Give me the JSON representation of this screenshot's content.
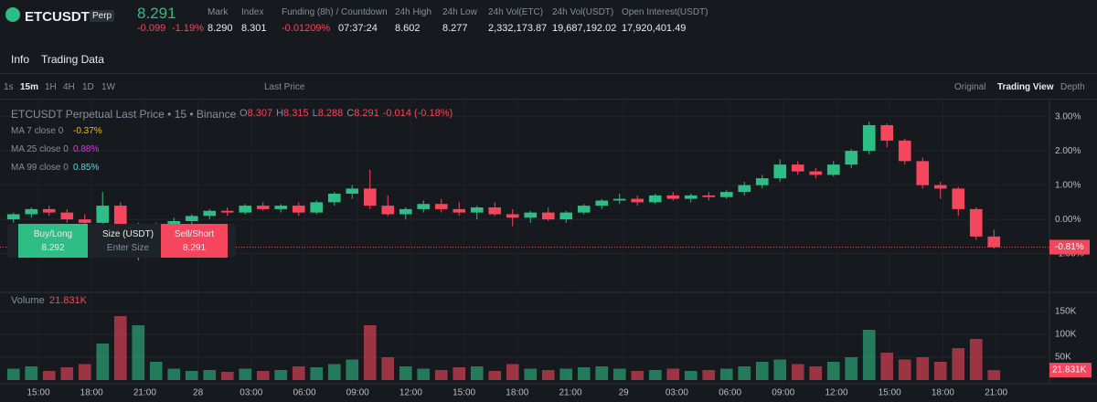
{
  "header": {
    "symbol": "ETCUSDT",
    "badge": "Perp",
    "price": "8.291",
    "change": "-0.099",
    "change_pct": "-1.19%",
    "stats": [
      {
        "label": "Mark",
        "value": "8.290"
      },
      {
        "label": "Index",
        "value": "8.301"
      },
      {
        "label": "Funding (8h) / Countdown",
        "value": "-0.01209%",
        "value2": "07:37:24"
      },
      {
        "label": "24h High",
        "value": "8.602"
      },
      {
        "label": "24h Low",
        "value": "8.277"
      },
      {
        "label": "24h Vol(ETC)",
        "value": "2,332,173.87"
      },
      {
        "label": "24h Vol(USDT)",
        "value": "19,687,192.02"
      },
      {
        "label": "Open Interest(USDT)",
        "value": "17,920,401.49"
      }
    ]
  },
  "tabs": [
    "Info",
    "Trading Data"
  ],
  "toolbar": {
    "intervals": [
      "1s",
      "15m",
      "1H",
      "4H",
      "1D",
      "1W"
    ],
    "price_type": "Last Price",
    "views": [
      "Original",
      "Trading View",
      "Depth"
    ]
  },
  "legend": {
    "title": "ETCUSDT Perpetual Last Price • 15 • Binance",
    "ohlc": [
      {
        "k": "O",
        "v": "8.307"
      },
      {
        "k": "H",
        "v": "8.315"
      },
      {
        "k": "L",
        "v": "8.288"
      },
      {
        "k": "C",
        "v": "8.291"
      }
    ],
    "change": "-0.014 (-0.18%)",
    "ma": [
      {
        "name": "MA 7 close 0",
        "value": "-0.37%",
        "color": "#f0b90b"
      },
      {
        "name": "MA 25 close 0",
        "value": "0.88%",
        "color": "#d63cd9"
      },
      {
        "name": "MA 99 close 0",
        "value": "0.85%",
        "color": "#5ad7e0"
      }
    ]
  },
  "order_panel": {
    "buy": "Buy/Long",
    "buy_price": "8.292",
    "size": "Size (USDT)",
    "size_hint": "Enter Size",
    "sell": "Sell/Short",
    "sell_price": "8.291"
  },
  "chart_data": {
    "type": "candlestick",
    "up_color": "#2ebd85",
    "down_color": "#f6465d",
    "ylim": [
      -2.13,
      3.47
    ],
    "yticks": [
      {
        "value": -1,
        "label": "-1.00%"
      },
      {
        "value": 0,
        "label": "0.00%"
      },
      {
        "value": 1,
        "label": "1.00%"
      },
      {
        "value": 2,
        "label": "2.00%"
      },
      {
        "value": 3,
        "label": "3.00%"
      }
    ],
    "last": {
      "value": -0.81,
      "label": "-0.81%"
    },
    "x_labels": [
      "15:00",
      "18:00",
      "21:00",
      "28",
      "03:00",
      "06:00",
      "09:00",
      "12:00",
      "15:00",
      "18:00",
      "21:00",
      "29",
      "03:00",
      "06:00",
      "09:00",
      "12:00",
      "15:00",
      "18:00",
      "21:00"
    ],
    "candles": [
      [
        0.0,
        0.2,
        -0.1,
        0.15
      ],
      [
        0.15,
        0.35,
        0.05,
        0.3
      ],
      [
        0.3,
        0.4,
        0.1,
        0.2
      ],
      [
        0.2,
        0.3,
        -0.1,
        0.0
      ],
      [
        0.0,
        0.15,
        -0.2,
        -0.1
      ],
      [
        -0.1,
        0.8,
        -0.15,
        0.4
      ],
      [
        0.4,
        0.5,
        -0.7,
        -0.5
      ],
      [
        -0.5,
        -0.1,
        -1.2,
        -0.4
      ],
      [
        -0.4,
        -0.1,
        -0.6,
        -0.2
      ],
      [
        -0.2,
        0.05,
        -0.3,
        -0.05
      ],
      [
        -0.05,
        0.15,
        -0.15,
        0.1
      ],
      [
        0.1,
        0.3,
        0.0,
        0.25
      ],
      [
        0.25,
        0.35,
        0.1,
        0.2
      ],
      [
        0.2,
        0.45,
        0.15,
        0.4
      ],
      [
        0.4,
        0.5,
        0.25,
        0.3
      ],
      [
        0.3,
        0.45,
        0.2,
        0.4
      ],
      [
        0.4,
        0.5,
        0.1,
        0.2
      ],
      [
        0.2,
        0.55,
        0.15,
        0.5
      ],
      [
        0.5,
        0.8,
        0.4,
        0.75
      ],
      [
        0.75,
        1.0,
        0.6,
        0.9
      ],
      [
        0.9,
        1.45,
        0.3,
        0.4
      ],
      [
        0.4,
        0.7,
        0.1,
        0.15
      ],
      [
        0.15,
        0.35,
        0.0,
        0.3
      ],
      [
        0.3,
        0.55,
        0.2,
        0.45
      ],
      [
        0.45,
        0.6,
        0.2,
        0.3
      ],
      [
        0.3,
        0.5,
        0.1,
        0.2
      ],
      [
        0.2,
        0.4,
        0.0,
        0.35
      ],
      [
        0.35,
        0.5,
        0.1,
        0.15
      ],
      [
        0.15,
        0.3,
        -0.2,
        0.05
      ],
      [
        0.05,
        0.25,
        -0.1,
        0.2
      ],
      [
        0.2,
        0.35,
        -0.05,
        0.0
      ],
      [
        0.0,
        0.25,
        -0.1,
        0.2
      ],
      [
        0.2,
        0.45,
        0.15,
        0.4
      ],
      [
        0.4,
        0.6,
        0.3,
        0.55
      ],
      [
        0.55,
        0.75,
        0.45,
        0.6
      ],
      [
        0.6,
        0.7,
        0.4,
        0.5
      ],
      [
        0.5,
        0.75,
        0.45,
        0.7
      ],
      [
        0.7,
        0.8,
        0.55,
        0.6
      ],
      [
        0.6,
        0.75,
        0.5,
        0.7
      ],
      [
        0.7,
        0.8,
        0.55,
        0.65
      ],
      [
        0.65,
        0.85,
        0.6,
        0.8
      ],
      [
        0.8,
        1.1,
        0.7,
        1.0
      ],
      [
        1.0,
        1.3,
        0.9,
        1.2
      ],
      [
        1.2,
        1.75,
        1.1,
        1.6
      ],
      [
        1.6,
        1.7,
        1.3,
        1.4
      ],
      [
        1.4,
        1.5,
        1.2,
        1.3
      ],
      [
        1.3,
        1.7,
        1.25,
        1.6
      ],
      [
        1.6,
        2.05,
        1.5,
        2.0
      ],
      [
        2.0,
        2.85,
        1.9,
        2.75
      ],
      [
        2.75,
        2.8,
        2.1,
        2.3
      ],
      [
        2.3,
        2.35,
        1.6,
        1.7
      ],
      [
        1.7,
        1.8,
        0.9,
        1.0
      ],
      [
        1.0,
        1.1,
        0.6,
        0.9
      ],
      [
        0.9,
        0.95,
        0.1,
        0.3
      ],
      [
        0.3,
        0.35,
        -0.6,
        -0.5
      ],
      [
        -0.5,
        -0.3,
        -0.85,
        -0.81
      ]
    ],
    "volume": {
      "title": "Volume",
      "last": {
        "value": 21831,
        "label": "21.831K"
      },
      "ylim": [
        0,
        192000
      ],
      "yticks": [
        {
          "value": 50000,
          "label": "50K"
        },
        {
          "value": 100000,
          "label": "100K"
        },
        {
          "value": 150000,
          "label": "150K"
        }
      ],
      "values": [
        25000,
        30000,
        20000,
        28000,
        35000,
        80000,
        140000,
        120000,
        40000,
        25000,
        20000,
        22000,
        18000,
        25000,
        20000,
        22000,
        30000,
        28000,
        35000,
        45000,
        120000,
        50000,
        30000,
        25000,
        22000,
        28000,
        30000,
        20000,
        35000,
        25000,
        22000,
        25000,
        28000,
        30000,
        25000,
        20000,
        22000,
        25000,
        20000,
        22000,
        25000,
        30000,
        40000,
        45000,
        35000,
        30000,
        40000,
        50000,
        110000,
        60000,
        45000,
        50000,
        40000,
        70000,
        90000,
        21831
      ]
    }
  }
}
